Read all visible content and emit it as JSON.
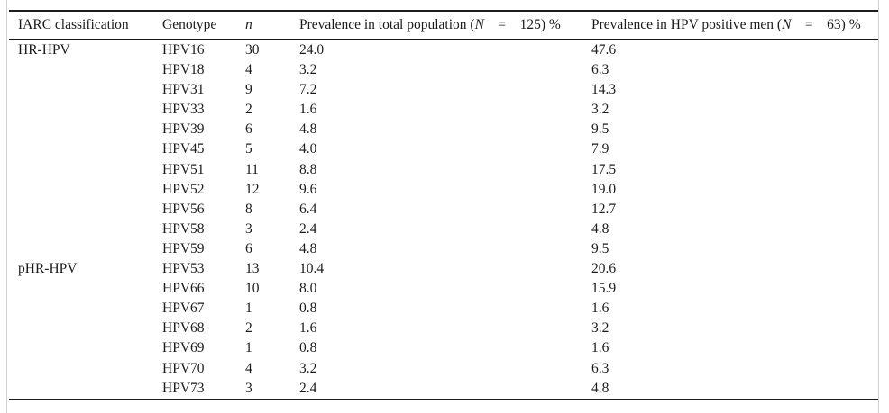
{
  "colors": {
    "background": "#ffffff",
    "text": "#1b1b1b",
    "rule": "#1c1c1c",
    "scan_edge": "#d2d2d2"
  },
  "table": {
    "header": {
      "iarc": "IARC classification",
      "genotype": "Genotype",
      "n": "n",
      "prev_total": {
        "prefix": "Prevalence in total population (",
        "n_symbol": "N",
        "rest": " = 125) %"
      },
      "prev_positive": {
        "prefix": "Prevalence in HPV positive men (",
        "n_symbol": "N",
        "rest": " = 63) %"
      }
    },
    "rows": [
      {
        "classification": "HR-HPV",
        "genotype": "HPV16",
        "n": "30",
        "prev_total": "24.0",
        "prev_positive": "47.6"
      },
      {
        "classification": "",
        "genotype": "HPV18",
        "n": "4",
        "prev_total": "3.2",
        "prev_positive": "6.3"
      },
      {
        "classification": "",
        "genotype": "HPV31",
        "n": "9",
        "prev_total": "7.2",
        "prev_positive": "14.3"
      },
      {
        "classification": "",
        "genotype": "HPV33",
        "n": "2",
        "prev_total": "1.6",
        "prev_positive": "3.2"
      },
      {
        "classification": "",
        "genotype": "HPV39",
        "n": "6",
        "prev_total": "4.8",
        "prev_positive": "9.5"
      },
      {
        "classification": "",
        "genotype": "HPV45",
        "n": "5",
        "prev_total": "4.0",
        "prev_positive": "7.9"
      },
      {
        "classification": "",
        "genotype": "HPV51",
        "n": "11",
        "prev_total": "8.8",
        "prev_positive": "17.5"
      },
      {
        "classification": "",
        "genotype": "HPV52",
        "n": "12",
        "prev_total": "9.6",
        "prev_positive": "19.0"
      },
      {
        "classification": "",
        "genotype": "HPV56",
        "n": "8",
        "prev_total": "6.4",
        "prev_positive": "12.7"
      },
      {
        "classification": "",
        "genotype": "HPV58",
        "n": "3",
        "prev_total": "2.4",
        "prev_positive": "4.8"
      },
      {
        "classification": "",
        "genotype": "HPV59",
        "n": "6",
        "prev_total": "4.8",
        "prev_positive": "9.5"
      },
      {
        "classification": "pHR-HPV",
        "genotype": "HPV53",
        "n": "13",
        "prev_total": "10.4",
        "prev_positive": "20.6"
      },
      {
        "classification": "",
        "genotype": "HPV66",
        "n": "10",
        "prev_total": "8.0",
        "prev_positive": "15.9"
      },
      {
        "classification": "",
        "genotype": "HPV67",
        "n": "1",
        "prev_total": "0.8",
        "prev_positive": "1.6"
      },
      {
        "classification": "",
        "genotype": "HPV68",
        "n": "2",
        "prev_total": "1.6",
        "prev_positive": "3.2"
      },
      {
        "classification": "",
        "genotype": "HPV69",
        "n": "1",
        "prev_total": "0.8",
        "prev_positive": "1.6"
      },
      {
        "classification": "",
        "genotype": "HPV70",
        "n": "4",
        "prev_total": "3.2",
        "prev_positive": "6.3"
      },
      {
        "classification": "",
        "genotype": "HPV73",
        "n": "3",
        "prev_total": "2.4",
        "prev_positive": "4.8"
      }
    ]
  }
}
